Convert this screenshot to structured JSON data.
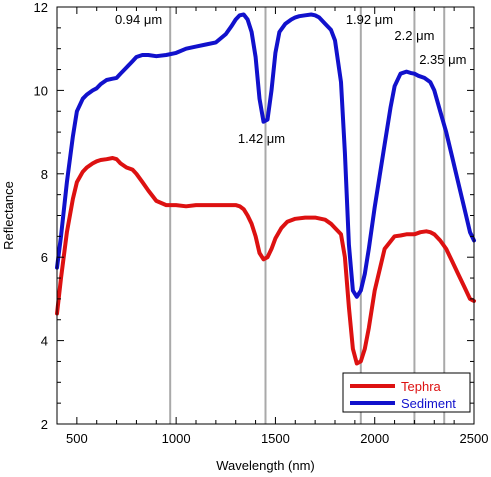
{
  "chart_data": {
    "type": "line",
    "xlabel": "Wavelength (nm)",
    "ylabel": "Reflectance",
    "xlim": [
      400,
      2500
    ],
    "ylim": [
      2,
      12
    ],
    "xticks": [
      500,
      1000,
      1500,
      2000,
      2500
    ],
    "yticks": [
      2,
      4,
      6,
      8,
      10,
      12
    ],
    "grid": false,
    "legend_position": "bottom-right",
    "reference_lines": [
      {
        "x": 970,
        "label": "0.94 μm"
      },
      {
        "x": 1450,
        "label": "1.42 μm"
      },
      {
        "x": 1930,
        "label": "1.92 μm"
      },
      {
        "x": 2200,
        "label": "2.2 μm"
      },
      {
        "x": 2350,
        "label": "2.35 μm"
      }
    ],
    "series": [
      {
        "name": "Tephra",
        "color": "#dd1111",
        "x": [
          400,
          420,
          450,
          480,
          500,
          530,
          550,
          580,
          600,
          620,
          650,
          680,
          700,
          720,
          750,
          780,
          800,
          830,
          860,
          900,
          950,
          1000,
          1050,
          1100,
          1150,
          1200,
          1250,
          1300,
          1320,
          1340,
          1360,
          1380,
          1400,
          1420,
          1440,
          1460,
          1480,
          1500,
          1530,
          1560,
          1600,
          1650,
          1700,
          1750,
          1780,
          1800,
          1830,
          1850,
          1870,
          1890,
          1910,
          1930,
          1950,
          1970,
          2000,
          2050,
          2100,
          2130,
          2160,
          2200,
          2230,
          2260,
          2280,
          2300,
          2330,
          2360,
          2390,
          2420,
          2450,
          2480,
          2500
        ],
        "y": [
          4.65,
          5.5,
          6.6,
          7.4,
          7.8,
          8.05,
          8.15,
          8.25,
          8.3,
          8.33,
          8.35,
          8.38,
          8.35,
          8.25,
          8.15,
          8.1,
          8.0,
          7.8,
          7.6,
          7.35,
          7.25,
          7.25,
          7.22,
          7.25,
          7.25,
          7.25,
          7.25,
          7.25,
          7.22,
          7.15,
          7.0,
          6.8,
          6.5,
          6.1,
          5.95,
          6.0,
          6.2,
          6.45,
          6.7,
          6.85,
          6.92,
          6.95,
          6.95,
          6.9,
          6.8,
          6.7,
          6.55,
          6.0,
          4.8,
          3.8,
          3.45,
          3.5,
          3.8,
          4.3,
          5.2,
          6.2,
          6.5,
          6.52,
          6.55,
          6.55,
          6.6,
          6.62,
          6.6,
          6.55,
          6.4,
          6.2,
          5.9,
          5.6,
          5.3,
          5.0,
          4.95
        ]
      },
      {
        "name": "Sediment",
        "color": "#1111cc",
        "x": [
          400,
          420,
          450,
          480,
          500,
          530,
          550,
          580,
          600,
          620,
          650,
          680,
          700,
          720,
          750,
          780,
          800,
          830,
          860,
          900,
          950,
          1000,
          1050,
          1100,
          1150,
          1200,
          1250,
          1280,
          1300,
          1320,
          1340,
          1360,
          1380,
          1400,
          1420,
          1440,
          1460,
          1480,
          1500,
          1520,
          1550,
          1580,
          1600,
          1620,
          1650,
          1680,
          1700,
          1720,
          1750,
          1780,
          1800,
          1830,
          1850,
          1870,
          1890,
          1910,
          1930,
          1950,
          1970,
          2000,
          2050,
          2080,
          2100,
          2130,
          2160,
          2180,
          2200,
          2220,
          2250,
          2280,
          2300,
          2330,
          2360,
          2390,
          2420,
          2450,
          2480,
          2500
        ],
        "y": [
          5.75,
          6.5,
          7.8,
          8.9,
          9.5,
          9.8,
          9.9,
          10.0,
          10.05,
          10.15,
          10.25,
          10.28,
          10.3,
          10.4,
          10.55,
          10.7,
          10.8,
          10.85,
          10.85,
          10.82,
          10.85,
          10.9,
          11.0,
          11.05,
          11.1,
          11.15,
          11.35,
          11.55,
          11.7,
          11.8,
          11.82,
          11.7,
          11.4,
          10.8,
          9.8,
          9.25,
          9.3,
          10.0,
          10.9,
          11.4,
          11.6,
          11.7,
          11.75,
          11.78,
          11.8,
          11.82,
          11.8,
          11.75,
          11.6,
          11.45,
          11.2,
          10.2,
          8.5,
          6.3,
          5.2,
          5.05,
          5.2,
          5.6,
          6.2,
          7.2,
          8.7,
          9.6,
          10.1,
          10.4,
          10.45,
          10.42,
          10.4,
          10.35,
          10.3,
          10.2,
          10.0,
          9.5,
          9.0,
          8.4,
          7.8,
          7.2,
          6.6,
          6.4
        ]
      }
    ]
  }
}
